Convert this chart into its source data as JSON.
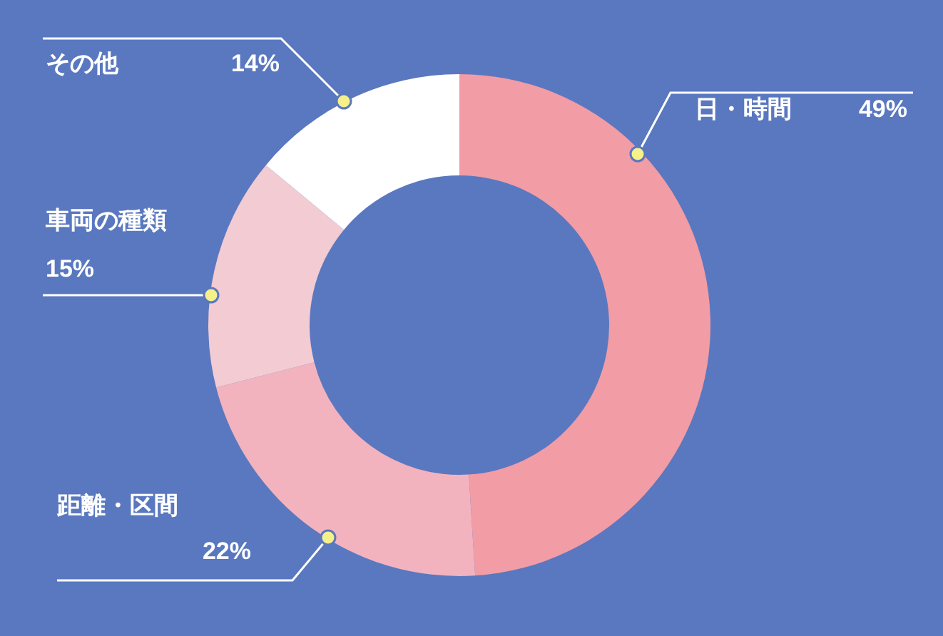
{
  "chart_data": {
    "type": "donut",
    "categories": [
      "日・時間",
      "距離・区間",
      "車両の種類",
      "その他"
    ],
    "values": [
      49,
      22,
      15,
      14
    ],
    "colors": [
      "#f29ca6",
      "#f2b3bf",
      "#f2cbd3",
      "#ffffff"
    ],
    "value_labels": [
      "49%",
      "22%",
      "15%",
      "14%"
    ]
  }
}
